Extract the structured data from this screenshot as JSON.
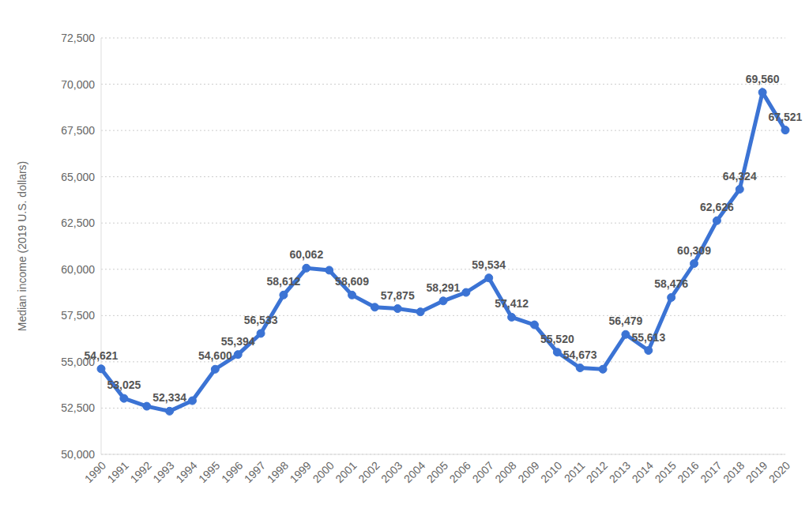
{
  "chart_data": {
    "type": "line",
    "y_label": "Median income (2019 U.S. dollars)",
    "categories": [
      "1990",
      "1991",
      "1992",
      "1993",
      "1994",
      "1995",
      "1996",
      "1997",
      "1998",
      "1999",
      "2000",
      "2001",
      "2002",
      "2003",
      "2004",
      "2005",
      "2006",
      "2007",
      "2008",
      "2009",
      "2010",
      "2011",
      "2012",
      "2013",
      "2014",
      "2015",
      "2016",
      "2017",
      "2018",
      "2019",
      "2020"
    ],
    "values": [
      54621,
      53025,
      52600,
      52334,
      52900,
      54600,
      55394,
      56533,
      58612,
      60062,
      59950,
      58609,
      57950,
      57875,
      57700,
      58291,
      58750,
      59534,
      57412,
      57000,
      55520,
      54673,
      54600,
      56479,
      55613,
      58476,
      60309,
      62626,
      64324,
      69560,
      67521
    ],
    "value_labels": [
      "54,621",
      "53,025",
      null,
      "52,334",
      null,
      "54,600",
      "55,394",
      "56,533",
      "58,612",
      "60,062",
      null,
      "58,609",
      null,
      "57,875",
      null,
      "58,291",
      null,
      "59,534",
      "57,412",
      null,
      "55,520",
      "54,673",
      null,
      "56,479",
      "55,613",
      "58,476",
      "60,309",
      "62,626",
      "64,324",
      "69,560",
      "67,521"
    ],
    "data_labels": true,
    "color": "#3b73d4",
    "marker": "circle",
    "ylim": [
      50000,
      72500
    ],
    "yticks": [
      {
        "value": 50000,
        "label": "50,000"
      },
      {
        "value": 52500,
        "label": "52,500"
      },
      {
        "value": 55000,
        "label": "55,000"
      },
      {
        "value": 57500,
        "label": "57,500"
      },
      {
        "value": 60000,
        "label": "60,000"
      },
      {
        "value": 62500,
        "label": "62,500"
      },
      {
        "value": 65000,
        "label": "65,000"
      },
      {
        "value": 67500,
        "label": "67,500"
      },
      {
        "value": 70000,
        "label": "70,000"
      },
      {
        "value": 72500,
        "label": "72,500"
      }
    ],
    "grid": true
  }
}
